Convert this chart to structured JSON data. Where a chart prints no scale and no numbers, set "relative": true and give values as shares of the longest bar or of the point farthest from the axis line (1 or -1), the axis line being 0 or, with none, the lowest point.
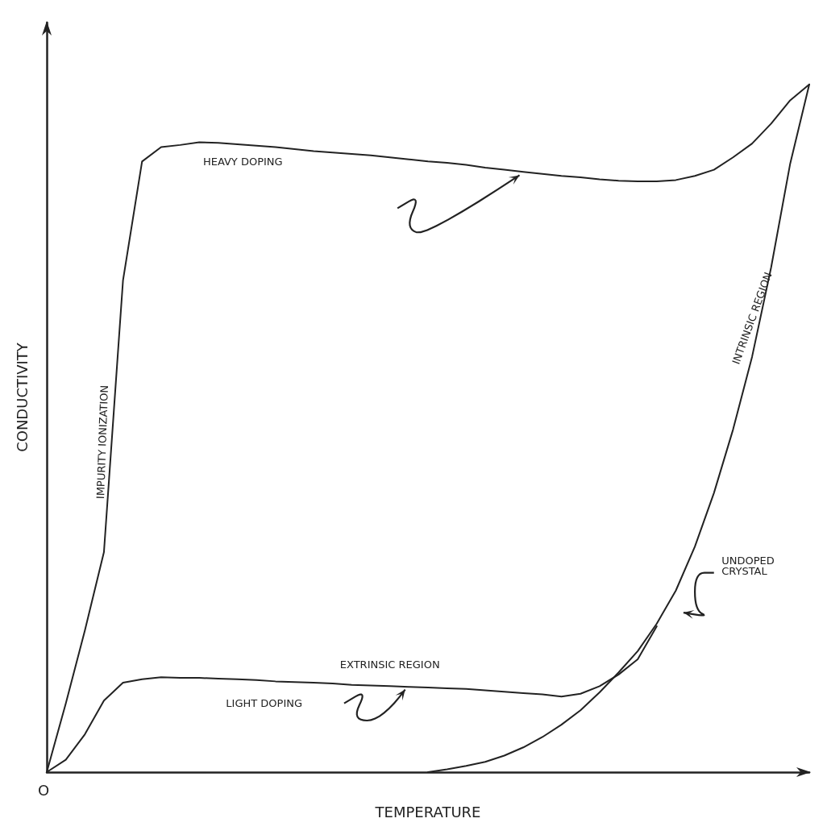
{
  "chart_data": {
    "type": "line",
    "relative": true,
    "xlabel": "TEMPERATURE",
    "ylabel": "CONDUCTIVITY",
    "grid": false,
    "legend": false,
    "marker": "none",
    "line_style": "solid",
    "categories": [
      null,
      null,
      null,
      null,
      null,
      null,
      null,
      null,
      null,
      null,
      null,
      null,
      null,
      null,
      null,
      null,
      null,
      null,
      null,
      null,
      null,
      null,
      null,
      null,
      null,
      null,
      null,
      null,
      null,
      null,
      null,
      null,
      null,
      null,
      null,
      null,
      null,
      null,
      null,
      null,
      null
    ],
    "series": [
      {
        "name": "HEAVY DOPING",
        "color": "#222222",
        "values": [
          0,
          0.1,
          0.206,
          0.32,
          0.715,
          0.888,
          0.909,
          0.912,
          0.916,
          0.915,
          0.913,
          0.911,
          0.909,
          0.906,
          0.903,
          0.901,
          0.899,
          0.897,
          0.894,
          0.891,
          0.888,
          0.886,
          0.883,
          0.879,
          0.876,
          0.873,
          0.87,
          0.867,
          0.865,
          0.862,
          0.86,
          0.859,
          0.859,
          0.861,
          0.867,
          0.876,
          0.894,
          0.914,
          0.943,
          0.977,
          1.0
        ]
      },
      {
        "name": "LIGHT DOPING",
        "color": "#222222",
        "values": [
          0,
          0.018,
          0.055,
          0.104,
          0.13,
          0.135,
          0.138,
          0.137,
          0.137,
          0.136,
          0.135,
          0.134,
          0.132,
          0.131,
          0.13,
          0.129,
          0.127,
          0.126,
          0.125,
          0.124,
          0.123,
          0.122,
          0.121,
          0.119,
          0.117,
          0.115,
          0.113,
          0.11,
          0.114,
          0.125,
          0.142,
          0.164,
          0.212,
          null,
          null,
          null,
          null,
          null,
          null,
          null,
          null
        ]
      },
      {
        "name": "UNDOPED CRYSTAL",
        "color": "#222222",
        "values": [
          null,
          null,
          null,
          null,
          null,
          null,
          null,
          null,
          null,
          null,
          null,
          null,
          null,
          null,
          null,
          null,
          null,
          null,
          null,
          null,
          0,
          0.004,
          0.009,
          0.015,
          0.024,
          0.036,
          0.051,
          0.069,
          0.09,
          0.116,
          0.145,
          0.176,
          0.216,
          0.264,
          0.328,
          0.406,
          0.498,
          0.604,
          0.734,
          0.885,
          1.0
        ]
      }
    ],
    "annotations": [
      "EXTRINSIC REGION",
      "INTRINSIC REGION",
      "IMPURITY IONIZATION",
      "O"
    ]
  }
}
